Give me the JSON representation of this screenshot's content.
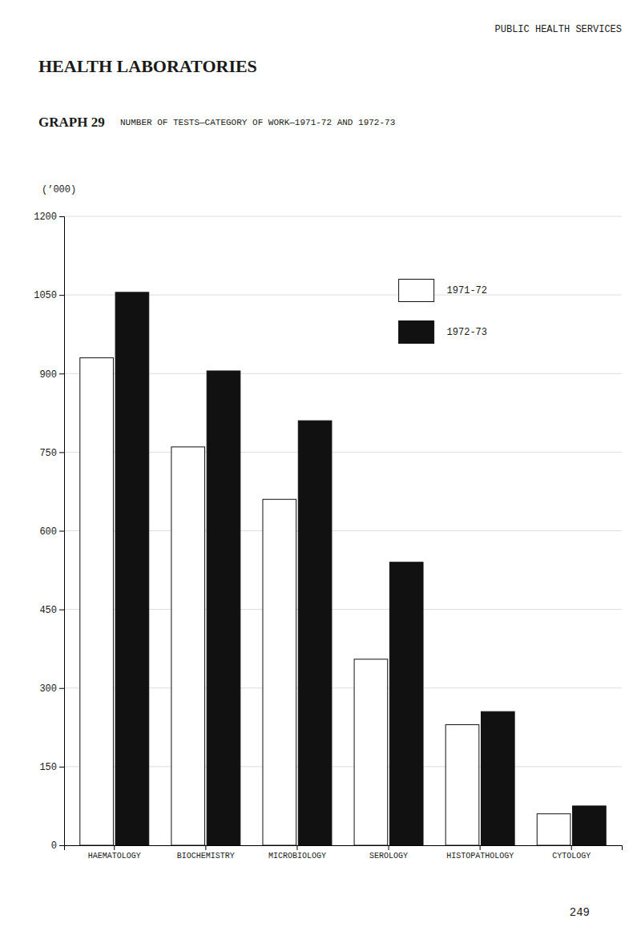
{
  "chart_data": {
    "type": "bar",
    "title": "HEALTH LABORATORIES",
    "subtitle": "NUMBER OF TESTS—CATEGORY OF WORK—1971-72 AND 1972-73",
    "annotations": [
      "PUBLIC HEALTH SERVICES",
      "GRAPH 29",
      "249"
    ],
    "ylabel": "(’000)",
    "categories": [
      "HAEMATOLOGY",
      "BIOCHEMISTRY",
      "MICROBIOLOGY",
      "SEROLOGY",
      "HISTOPATHOLOGY",
      "CYTOLOGY"
    ],
    "series": [
      {
        "name": "1971-72",
        "color": "#ffffff",
        "values": [
          930,
          760,
          660,
          355,
          230,
          60
        ]
      },
      {
        "name": "1972-73",
        "color": "#111111",
        "values": [
          1055,
          905,
          810,
          540,
          255,
          75
        ]
      }
    ],
    "ylim": [
      0,
      1200
    ],
    "yticks": [
      0,
      150,
      300,
      450,
      600,
      750,
      900,
      1050,
      1200
    ],
    "grid": true,
    "legend": "upper right"
  }
}
